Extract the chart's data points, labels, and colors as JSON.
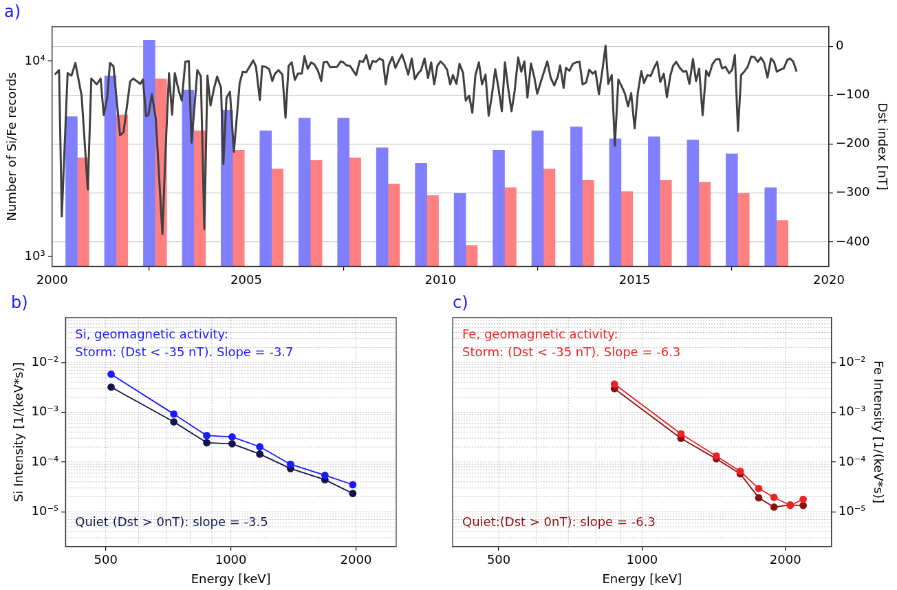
{
  "chart_data": [
    {
      "type": "bar",
      "title": "a)",
      "ylabel": "Number of Si/Fe records",
      "y2label": "Dst index [nT]",
      "log": "y",
      "grid": "y",
      "xlim": [
        2000,
        2020
      ],
      "xticks": [
        2000,
        2005,
        2010,
        2015,
        2020
      ],
      "ylim": [
        890,
        15000
      ],
      "yticks": [
        {
          "value": 1000,
          "label": "10³"
        },
        {
          "value": 10000,
          "label": "10⁴"
        }
      ],
      "y2lim": [
        -450,
        40
      ],
      "y2ticks": [
        {
          "value": -400,
          "label": "−400"
        },
        {
          "value": -300,
          "label": "−300"
        },
        {
          "value": -200,
          "label": "−200"
        },
        {
          "value": -100,
          "label": "−100"
        },
        0
      ],
      "series": [
        {
          "color": "#8080ff",
          "x": [
            2000.5,
            2001.5,
            2002.5,
            2003.5,
            2004.5,
            2005.5,
            2006.5,
            2007.5,
            2008.5,
            2009.5,
            2010.5,
            2011.5,
            2012.5,
            2013.5,
            2014.5,
            2015.5,
            2016.5,
            2017.5,
            2018.5
          ],
          "values": [
            5200,
            8400,
            12800,
            7100,
            5600,
            4400,
            5100,
            5100,
            3600,
            3000,
            2100,
            3500,
            4400,
            4600,
            4000,
            4100,
            3950,
            3350,
            2250
          ]
        },
        {
          "color": "#ff8080",
          "x": [
            2000.8,
            2001.8,
            2002.8,
            2003.8,
            2004.8,
            2005.8,
            2006.8,
            2007.8,
            2008.8,
            2009.8,
            2010.8,
            2011.8,
            2012.8,
            2013.8,
            2014.8,
            2015.8,
            2016.8,
            2017.8,
            2018.8
          ],
          "values": [
            3200,
            5300,
            8100,
            4400,
            3500,
            2800,
            3100,
            3200,
            2350,
            2050,
            1140,
            2250,
            2800,
            2450,
            2150,
            2450,
            2400,
            2100,
            1530
          ]
        },
        {
          "type": "line",
          "axis": "y2",
          "color": "#404040",
          "x": [
            2000.07,
            2000.18,
            2000.25,
            2000.4,
            2000.5,
            2000.6,
            2000.76,
            2000.92,
            2001.01,
            2001.15,
            2001.25,
            2001.33,
            2001.42,
            2001.49,
            2001.58,
            2001.75,
            2001.84,
            2002.01,
            2002.09,
            2002.27,
            2002.34,
            2002.42,
            2002.48,
            2002.57,
            2002.67,
            2002.84,
            2002.92,
            2003.01,
            2003.09,
            2003.16,
            2003.26,
            2003.34,
            2003.43,
            2003.52,
            2003.59,
            2003.67,
            2003.74,
            2003.83,
            2003.92,
            2004.0,
            2004.08,
            2004.17,
            2004.25,
            2004.35,
            2004.41,
            2004.49,
            2004.58,
            2004.68,
            2004.83,
            2004.91,
            2005.0,
            2005.18,
            2005.25,
            2005.35,
            2005.41,
            2005.5,
            2005.59,
            2005.67,
            2005.74,
            2005.83,
            2005.93,
            2006.01,
            2006.09,
            2006.17,
            2006.25,
            2006.33,
            2006.43,
            2006.5,
            2006.58,
            2006.67,
            2006.75,
            2006.84,
            2006.93,
            2006.99,
            2007.08,
            2007.16,
            2007.34,
            2007.43,
            2007.5,
            2007.58,
            2007.67,
            2007.76,
            2007.83,
            2007.92,
            2008.01,
            2008.09,
            2008.18,
            2008.25,
            2008.34,
            2008.43,
            2008.52,
            2008.59,
            2008.67,
            2008.76,
            2008.84,
            2008.93,
            2009.01,
            2009.09,
            2009.17,
            2009.26,
            2009.34,
            2009.43,
            2009.5,
            2009.59,
            2009.68,
            2009.76,
            2009.84,
            2009.92,
            2010.0,
            2010.09,
            2010.17,
            2010.25,
            2010.32,
            2010.41,
            2010.49,
            2010.58,
            2010.65,
            2010.74,
            2010.82,
            2010.9,
            2010.99,
            2011.07,
            2011.16,
            2011.24,
            2011.32,
            2011.41,
            2011.49,
            2011.58,
            2011.66,
            2011.74,
            2011.83,
            2011.91,
            2012.0,
            2012.08,
            2012.16,
            2012.24,
            2012.33,
            2012.42,
            2012.49,
            2012.59,
            2012.75,
            2012.84,
            2012.93,
            2013.02,
            2013.08,
            2013.17,
            2013.23,
            2013.32,
            2013.41,
            2013.49,
            2013.58,
            2013.66,
            2013.75,
            2013.83,
            2013.92,
            2013.99,
            2014.08,
            2014.17,
            2014.25,
            2014.32,
            2014.41,
            2014.49,
            2014.58,
            2014.66,
            2014.75,
            2014.83,
            2014.91,
            2015.0,
            2015.08,
            2015.17,
            2015.24,
            2015.33,
            2015.41,
            2015.5,
            2015.58,
            2015.66,
            2015.75,
            2015.83,
            2015.92,
            2015.99,
            2016.07,
            2016.16,
            2016.25,
            2016.33,
            2016.41,
            2016.5,
            2016.58,
            2016.66,
            2016.75,
            2016.84,
            2016.91,
            2017.0,
            2017.09,
            2017.18,
            2017.25,
            2017.34,
            2017.43,
            2017.51,
            2017.58,
            2017.66,
            2017.74,
            2017.82,
            2017.91,
            2018.0,
            2018.08,
            2018.17,
            2018.25,
            2018.33,
            2018.42,
            2018.51,
            2018.59,
            2018.66,
            2018.75,
            2018.84,
            2018.93,
            2019.0,
            2019.08,
            2019.17
          ],
          "values": [
            -58,
            -49,
            -348,
            -55,
            -60,
            -34,
            -101,
            -293,
            -66,
            -78,
            -66,
            -141,
            -105,
            -34,
            -41,
            -182,
            -176,
            -72,
            -66,
            -77,
            -68,
            -143,
            -141,
            -98,
            -148,
            -384,
            -217,
            -55,
            -140,
            -55,
            -91,
            -111,
            -32,
            -30,
            -197,
            -120,
            -49,
            -61,
            -374,
            -60,
            -121,
            -86,
            -62,
            -85,
            -241,
            -105,
            -93,
            -216,
            -75,
            -52,
            -53,
            -29,
            -42,
            -110,
            -41,
            -42,
            -47,
            -71,
            -56,
            -49,
            -58,
            -146,
            -40,
            -33,
            -69,
            -56,
            -56,
            -20,
            -46,
            -33,
            -37,
            -49,
            -71,
            -33,
            -32,
            -43,
            -42,
            -31,
            -33,
            -39,
            -40,
            -51,
            -59,
            -30,
            -32,
            -18,
            -47,
            -30,
            -32,
            -25,
            -29,
            -78,
            -38,
            -22,
            -44,
            -29,
            -17,
            -36,
            -58,
            -25,
            -67,
            -55,
            -49,
            -25,
            -65,
            -33,
            -78,
            -40,
            -31,
            -38,
            -48,
            -78,
            -59,
            -77,
            -36,
            -54,
            -111,
            -101,
            -136,
            -59,
            -33,
            -78,
            -58,
            -142,
            -103,
            -47,
            -84,
            -133,
            -33,
            -84,
            -133,
            -91,
            -23,
            -52,
            -31,
            -105,
            -35,
            -65,
            -97,
            -71,
            -31,
            -65,
            -80,
            -62,
            -39,
            -85,
            -44,
            -50,
            -36,
            -33,
            -32,
            -78,
            -74,
            -48,
            -56,
            -51,
            -98,
            -48,
            1,
            -77,
            -59,
            -203,
            -68,
            -81,
            -97,
            -123,
            -96,
            -168,
            -96,
            -51,
            -75,
            -59,
            -61,
            -44,
            -32,
            -73,
            -56,
            -104,
            -59,
            -40,
            -32,
            -44,
            -52,
            -51,
            -77,
            -26,
            -71,
            -46,
            -141,
            -50,
            -61,
            -37,
            -27,
            -26,
            -45,
            -42,
            -55,
            -48,
            -18,
            -173,
            -59,
            -52,
            -42,
            -21,
            -22,
            -32,
            -23,
            -33,
            -64,
            -25,
            -32,
            -52,
            -48,
            -45,
            -28,
            -25,
            -31,
            -52
          ]
        }
      ]
    },
    {
      "type": "line",
      "title": "b)",
      "xlabel": "Energy [keV]",
      "ylabel": "Si Intensity [1/(keV*s)]",
      "log": "xy",
      "grid": true,
      "marker": "circle",
      "xlim": [
        400,
        2500
      ],
      "xticks": [
        500,
        1000,
        2000
      ],
      "ylim": [
        2e-06,
        0.08
      ],
      "yticks": [
        {
          "value": 1e-05,
          "label": "10⁻⁵"
        },
        {
          "value": 0.0001,
          "label": "10⁻⁴"
        },
        {
          "value": 0.001,
          "label": "10⁻³"
        },
        {
          "value": 0.01,
          "label": "10⁻²"
        }
      ],
      "annotations": [
        "Si, geomagnetic activity:",
        "Storm: (Dst < -35 nT). Slope = -3.7",
        "Quiet (Dst > 0nT): slope = -3.5"
      ],
      "x": [
        515,
        729,
        875,
        1007,
        1174,
        1392,
        1684,
        1965
      ],
      "series": [
        {
          "color": "#1a1aff",
          "values": [
            0.0058,
            0.00092,
            0.00034,
            0.00032,
            0.000202,
            9e-05,
            5.4e-05,
            3.5e-05
          ]
        },
        {
          "color": "#141450",
          "values": [
            0.0032,
            0.00064,
            0.000244,
            0.000233,
            0.000144,
            7.4e-05,
            4.4e-05,
            2.33e-05
          ]
        }
      ]
    },
    {
      "type": "line",
      "title": "c)",
      "xlabel": "Energy [keV]",
      "ylabel": "Fe Intensity [1/(keV*s)]",
      "log": "xy",
      "grid": true,
      "marker": "circle",
      "xlim": [
        400,
        2500
      ],
      "xticks": [
        500,
        1000,
        2000
      ],
      "ylim": [
        2e-06,
        0.08
      ],
      "yticks": [
        {
          "value": 1e-05,
          "label": "10⁻⁵"
        },
        {
          "value": 0.0001,
          "label": "10⁻⁴"
        },
        {
          "value": 0.001,
          "label": "10⁻³"
        },
        {
          "value": 0.01,
          "label": "10⁻²"
        }
      ],
      "annotations": [
        "Fe, geomagnetic activity:",
        "Storm: (Dst < -35 nT). Slope = -6.3",
        "Quiet:(Dst > 0nT): slope = -6.3"
      ],
      "x": [
        875,
        1207,
        1432,
        1608,
        1758,
        1893,
        2048,
        2180
      ],
      "series": [
        {
          "color": "#ee2222",
          "values": [
            0.00368,
            0.000368,
            0.000132,
            6.5e-05,
            2.94e-05,
            1.95e-05,
            1.34e-05,
            1.78e-05
          ]
        },
        {
          "color": "#8b1010",
          "values": [
            0.00298,
            0.000298,
            0.000116,
            5.8e-05,
            1.91e-05,
            1.24e-05,
            1.37e-05,
            1.34e-05
          ]
        }
      ]
    }
  ]
}
